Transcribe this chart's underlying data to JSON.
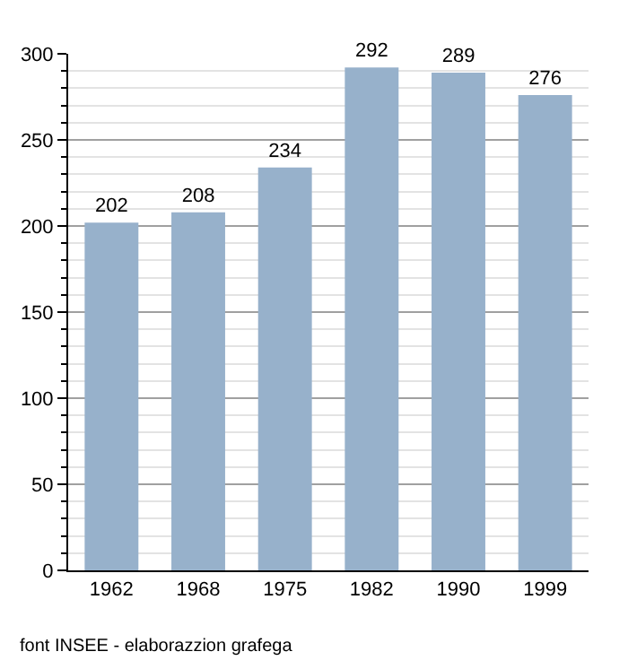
{
  "chart_data": {
    "type": "bar",
    "categories": [
      "1962",
      "1968",
      "1975",
      "1982",
      "1990",
      "1999"
    ],
    "values": [
      202,
      208,
      234,
      292,
      289,
      276
    ],
    "color": "#97b1cb",
    "ylim": [
      0,
      300
    ],
    "yticks": [
      0,
      50,
      100,
      150,
      200,
      250,
      300
    ],
    "grid": "y",
    "data_labels": true,
    "annotations": [
      "font INSEE - elaborazzion grafega"
    ]
  }
}
